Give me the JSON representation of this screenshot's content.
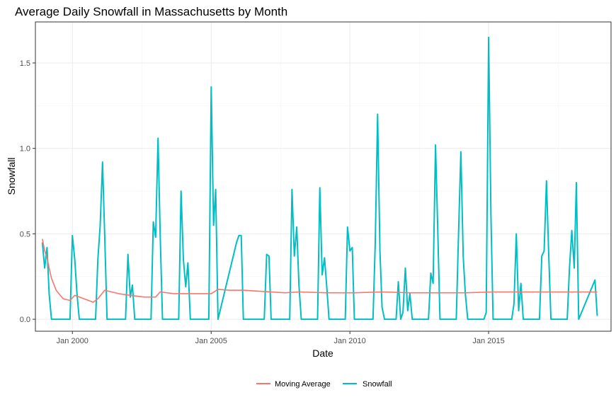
{
  "chart_data": {
    "type": "line",
    "title": "Average Daily Snowfall in Massachusetts by Month",
    "xlabel": "Date",
    "ylabel": "Snowfall",
    "xlim": [
      "1998-09-01",
      "2019-06-01"
    ],
    "ylim": [
      -0.07,
      1.74
    ],
    "x_ticks": [
      {
        "value": "2000-01-01",
        "label": "Jan 2000"
      },
      {
        "value": "2005-01-01",
        "label": "Jan 2005"
      },
      {
        "value": "2010-01-01",
        "label": "Jan 2010"
      },
      {
        "value": "2015-01-01",
        "label": "Jan 2015"
      }
    ],
    "y_ticks": [
      {
        "value": 0.0,
        "label": "0.0"
      },
      {
        "value": 0.5,
        "label": "0.5"
      },
      {
        "value": 1.0,
        "label": "1.0"
      },
      {
        "value": 1.5,
        "label": "1.5"
      }
    ],
    "grid": true,
    "legend_position": "bottom",
    "series": [
      {
        "name": "Snowfall",
        "color": "#00BFC4",
        "points": [
          [
            "1998-12-01",
            0.45
          ],
          [
            "1999-01-01",
            0.3
          ],
          [
            "1999-02-01",
            0.42
          ],
          [
            "1999-03-01",
            0.15
          ],
          [
            "1999-04-01",
            0.0
          ],
          [
            "1999-12-01",
            0.0
          ],
          [
            "2000-01-01",
            0.49
          ],
          [
            "2000-02-01",
            0.35
          ],
          [
            "2000-03-01",
            0.15
          ],
          [
            "2000-04-01",
            0.0
          ],
          [
            "2000-11-01",
            0.0
          ],
          [
            "2000-12-01",
            0.35
          ],
          [
            "2001-01-01",
            0.55
          ],
          [
            "2001-02-01",
            0.92
          ],
          [
            "2001-03-01",
            0.5
          ],
          [
            "2001-04-01",
            0.0
          ],
          [
            "2001-12-01",
            0.0
          ],
          [
            "2002-01-01",
            0.38
          ],
          [
            "2002-02-01",
            0.13
          ],
          [
            "2002-03-01",
            0.2
          ],
          [
            "2002-04-01",
            0.0
          ],
          [
            "2002-11-01",
            0.0
          ],
          [
            "2002-12-01",
            0.57
          ],
          [
            "2003-01-01",
            0.48
          ],
          [
            "2003-02-01",
            1.06
          ],
          [
            "2003-03-01",
            0.5
          ],
          [
            "2003-04-01",
            0.0
          ],
          [
            "2003-11-01",
            0.0
          ],
          [
            "2003-12-01",
            0.75
          ],
          [
            "2004-01-01",
            0.35
          ],
          [
            "2004-02-01",
            0.19
          ],
          [
            "2004-03-01",
            0.33
          ],
          [
            "2004-04-01",
            0.0
          ],
          [
            "2004-12-01",
            0.0
          ],
          [
            "2005-01-01",
            1.36
          ],
          [
            "2005-02-01",
            0.55
          ],
          [
            "2005-03-01",
            0.76
          ],
          [
            "2005-04-01",
            0.0
          ],
          [
            "2005-12-01",
            0.45
          ],
          [
            "2006-01-01",
            0.49
          ],
          [
            "2006-02-01",
            0.49
          ],
          [
            "2006-03-01",
            0.0
          ],
          [
            "2006-12-01",
            0.0
          ],
          [
            "2007-01-01",
            0.38
          ],
          [
            "2007-02-01",
            0.37
          ],
          [
            "2007-03-01",
            0.0
          ],
          [
            "2007-11-01",
            0.0
          ],
          [
            "2007-12-01",
            0.76
          ],
          [
            "2008-01-01",
            0.37
          ],
          [
            "2008-02-01",
            0.54
          ],
          [
            "2008-03-01",
            0.2
          ],
          [
            "2008-04-01",
            0.0
          ],
          [
            "2008-11-01",
            0.0
          ],
          [
            "2008-12-01",
            0.77
          ],
          [
            "2009-01-01",
            0.26
          ],
          [
            "2009-02-01",
            0.36
          ],
          [
            "2009-03-01",
            0.2
          ],
          [
            "2009-04-01",
            0.0
          ],
          [
            "2009-11-01",
            0.0
          ],
          [
            "2009-12-01",
            0.54
          ],
          [
            "2010-01-01",
            0.4
          ],
          [
            "2010-02-01",
            0.42
          ],
          [
            "2010-03-01",
            0.0
          ],
          [
            "2010-11-01",
            0.0
          ],
          [
            "2010-12-01",
            0.45
          ],
          [
            "2011-01-01",
            1.2
          ],
          [
            "2011-02-01",
            0.4
          ],
          [
            "2011-03-01",
            0.07
          ],
          [
            "2011-04-01",
            0.0
          ],
          [
            "2011-09-01",
            0.0
          ],
          [
            "2011-10-01",
            0.22
          ],
          [
            "2011-11-01",
            0.0
          ],
          [
            "2011-12-01",
            0.04
          ],
          [
            "2012-01-01",
            0.3
          ],
          [
            "2012-02-01",
            0.05
          ],
          [
            "2012-03-01",
            0.15
          ],
          [
            "2012-04-01",
            0.0
          ],
          [
            "2012-11-01",
            0.0
          ],
          [
            "2012-12-01",
            0.27
          ],
          [
            "2013-01-01",
            0.21
          ],
          [
            "2013-02-01",
            1.02
          ],
          [
            "2013-03-01",
            0.55
          ],
          [
            "2013-04-01",
            0.0
          ],
          [
            "2013-11-01",
            0.0
          ],
          [
            "2013-12-01",
            0.5
          ],
          [
            "2014-01-01",
            0.98
          ],
          [
            "2014-02-01",
            0.37
          ],
          [
            "2014-03-01",
            0.15
          ],
          [
            "2014-04-01",
            0.0
          ],
          [
            "2014-11-01",
            0.0
          ],
          [
            "2014-12-01",
            0.04
          ],
          [
            "2015-01-01",
            1.65
          ],
          [
            "2015-02-01",
            0.6
          ],
          [
            "2015-03-01",
            0.0
          ],
          [
            "2015-11-01",
            0.0
          ],
          [
            "2015-12-01",
            0.09
          ],
          [
            "2016-01-01",
            0.5
          ],
          [
            "2016-02-01",
            0.05
          ],
          [
            "2016-03-01",
            0.21
          ],
          [
            "2016-04-01",
            0.0
          ],
          [
            "2016-11-01",
            0.0
          ],
          [
            "2016-12-01",
            0.37
          ],
          [
            "2017-01-01",
            0.4
          ],
          [
            "2017-02-01",
            0.81
          ],
          [
            "2017-03-01",
            0.4
          ],
          [
            "2017-04-01",
            0.0
          ],
          [
            "2017-11-01",
            0.0
          ],
          [
            "2017-12-01",
            0.3
          ],
          [
            "2018-01-01",
            0.52
          ],
          [
            "2018-02-01",
            0.3
          ],
          [
            "2018-03-01",
            0.8
          ],
          [
            "2018-04-01",
            0.0
          ],
          [
            "2018-11-01",
            0.23
          ],
          [
            "2018-12-01",
            0.02
          ]
        ]
      },
      {
        "name": "Moving Average",
        "color": "#F8766D",
        "points": [
          [
            "1998-12-01",
            0.47
          ],
          [
            "1999-01-01",
            0.4
          ],
          [
            "1999-02-01",
            0.36
          ],
          [
            "1999-03-01",
            0.3
          ],
          [
            "1999-04-01",
            0.24
          ],
          [
            "1999-06-01",
            0.17
          ],
          [
            "1999-09-01",
            0.12
          ],
          [
            "1999-12-01",
            0.11
          ],
          [
            "2000-02-01",
            0.14
          ],
          [
            "2000-06-01",
            0.12
          ],
          [
            "2000-10-01",
            0.1
          ],
          [
            "2000-12-01",
            0.12
          ],
          [
            "2001-03-01",
            0.17
          ],
          [
            "2001-09-01",
            0.15
          ],
          [
            "2002-02-01",
            0.14
          ],
          [
            "2002-08-01",
            0.13
          ],
          [
            "2003-01-01",
            0.13
          ],
          [
            "2003-03-01",
            0.16
          ],
          [
            "2003-09-01",
            0.15
          ],
          [
            "2004-03-01",
            0.15
          ],
          [
            "2004-09-01",
            0.15
          ],
          [
            "2005-01-01",
            0.15
          ],
          [
            "2005-04-01",
            0.175
          ],
          [
            "2005-09-01",
            0.17
          ],
          [
            "2006-03-01",
            0.17
          ],
          [
            "2006-09-01",
            0.165
          ],
          [
            "2007-03-01",
            0.16
          ],
          [
            "2007-09-01",
            0.155
          ],
          [
            "2008-03-01",
            0.16
          ],
          [
            "2009-03-01",
            0.155
          ],
          [
            "2010-03-01",
            0.155
          ],
          [
            "2011-03-01",
            0.16
          ],
          [
            "2012-03-01",
            0.155
          ],
          [
            "2013-03-01",
            0.155
          ],
          [
            "2014-03-01",
            0.155
          ],
          [
            "2015-03-01",
            0.16
          ],
          [
            "2016-03-01",
            0.16
          ],
          [
            "2017-03-01",
            0.16
          ],
          [
            "2018-03-01",
            0.16
          ],
          [
            "2018-12-01",
            0.16
          ]
        ]
      }
    ]
  }
}
